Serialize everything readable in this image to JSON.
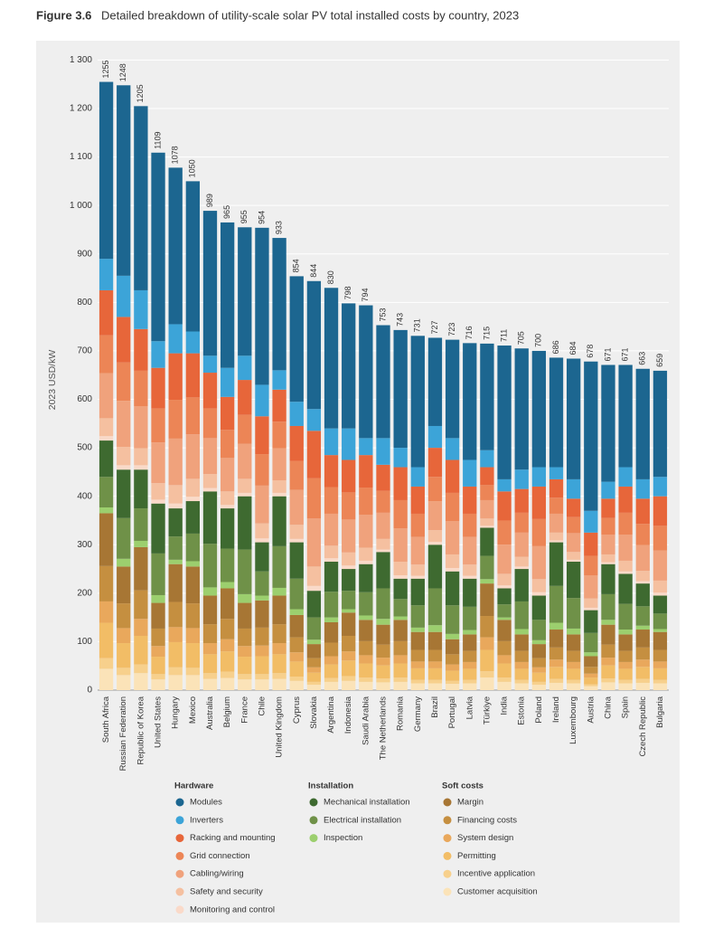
{
  "chart_data": {
    "type": "stacked_bar",
    "figure_label": "Figure 3.6",
    "title": "Detailed breakdown of utility-scale solar PV total installed costs by country, 2023",
    "y_label": "2023 USD/kW",
    "categories": [
      "South Africa",
      "Russian Federation",
      "Republic of Korea",
      "United States",
      "Hungary",
      "Mexico",
      "Australia",
      "Belgium",
      "France",
      "Chile",
      "United Kingdom",
      "Cyprus",
      "Slovakia",
      "Argentina",
      "Indonesia",
      "Saudi Arabia",
      "The Netherlands",
      "Romania",
      "Germany",
      "Brazil",
      "Portugal",
      "Latvia",
      "Türkiye",
      "India",
      "Estonia",
      "Poland",
      "Ireland",
      "Luxembourg",
      "Austria",
      "China",
      "Spain",
      "Czech Republic",
      "Bulgaria"
    ],
    "totals": [
      1255,
      1248,
      1205,
      1109,
      1078,
      1050,
      989,
      965,
      955,
      954,
      933,
      854,
      844,
      830,
      798,
      794,
      753,
      743,
      731,
      727,
      723,
      716,
      715,
      711,
      705,
      700,
      686,
      684,
      678,
      671,
      671,
      663,
      659
    ],
    "ylim": [
      0,
      1340
    ],
    "yticks": [
      0,
      100,
      200,
      300,
      400,
      500,
      600,
      700,
      800,
      900,
      {
        "value": 1000,
        "label": "1 000"
      },
      {
        "value": 1100,
        "label": "1 100"
      },
      {
        "value": 1200,
        "label": "1 200"
      },
      {
        "value": 1300,
        "label": "1 300"
      }
    ],
    "grid": true,
    "series": [
      {
        "name": "Modules",
        "group": "Hardware",
        "color": "#1c6690",
        "values": [
          365,
          393,
          380,
          389,
          323,
          310,
          299,
          300,
          265,
          324,
          273,
          259,
          264,
          290,
          258,
          274,
          233,
          243,
          271,
          182,
          203,
          241,
          220,
          276,
          250,
          240,
          226,
          249,
          308,
          241,
          211,
          228,
          219
        ]
      },
      {
        "name": "Inverters",
        "group": "Hardware",
        "color": "#3ca4d8",
        "values": [
          65,
          85,
          80,
          55,
          60,
          45,
          35,
          60,
          50,
          65,
          40,
          50,
          45,
          55,
          65,
          35,
          55,
          40,
          40,
          45,
          45,
          55,
          35,
          25,
          40,
          40,
          25,
          40,
          45,
          35,
          40,
          40,
          40
        ]
      },
      {
        "name": "Racking and mounting",
        "group": "Hardware",
        "color": "#e7663a",
        "values": [
          93,
          94,
          86,
          84,
          96,
          91,
          74,
          68,
          72,
          78,
          66,
          72,
          98,
          66,
          67,
          67,
          54,
          68,
          56,
          60,
          68,
          56,
          37,
          60,
          49,
          67,
          38,
          38,
          48,
          40,
          54,
          52,
          61
        ]
      },
      {
        "name": "Grid connection",
        "group": "Hardware",
        "color": "#ec8556",
        "values": [
          78,
          79,
          73,
          70,
          80,
          76,
          61,
          58,
          60,
          65,
          55,
          60,
          83,
          55,
          56,
          56,
          45,
          58,
          48,
          50,
          58,
          48,
          31,
          50,
          41,
          56,
          33,
          33,
          40,
          34,
          45,
          44,
          51
        ]
      },
      {
        "name": "Cabling/wiring",
        "group": "Hardware",
        "color": "#f0a27c",
        "values": [
          93,
          95,
          87,
          84,
          96,
          92,
          74,
          69,
          72,
          78,
          66,
          72,
          99,
          66,
          68,
          68,
          54,
          69,
          57,
          60,
          69,
          57,
          38,
          60,
          50,
          68,
          39,
          39,
          48,
          41,
          54,
          53,
          62
        ]
      },
      {
        "name": "Safety and security",
        "group": "Hardware",
        "color": "#f5c0a0",
        "values": [
          37,
          38,
          35,
          34,
          38,
          37,
          29,
          28,
          29,
          31,
          26,
          29,
          40,
          26,
          27,
          27,
          22,
          28,
          23,
          24,
          28,
          23,
          15,
          24,
          20,
          27,
          16,
          16,
          19,
          16,
          22,
          21,
          25
        ]
      },
      {
        "name": "Monitoring and control",
        "group": "Hardware",
        "color": "#fadac9",
        "values": [
          9,
          9,
          9,
          8,
          10,
          9,
          7,
          7,
          7,
          8,
          7,
          7,
          10,
          7,
          7,
          7,
          5,
          7,
          6,
          6,
          7,
          6,
          4,
          6,
          5,
          7,
          4,
          4,
          5,
          4,
          5,
          5,
          6
        ]
      },
      {
        "name": "Mechanical installation",
        "group": "Installation",
        "color": "#3e6a30",
        "values": [
          75,
          100,
          80,
          103,
          58,
          67,
          108,
          83,
          110,
          60,
          103,
          75,
          55,
          62,
          45,
          58,
          75,
          42,
          55,
          90,
          70,
          58,
          58,
          33,
          67,
          50,
          90,
          75,
          47,
          62,
          62,
          47,
          37
        ]
      },
      {
        "name": "Electrical installation",
        "group": "Installation",
        "color": "#6f9148",
        "values": [
          63,
          84,
          67,
          86,
          48,
          57,
          90,
          69,
          92,
          50,
          86,
          63,
          46,
          53,
          38,
          48,
          63,
          36,
          46,
          76,
          59,
          48,
          48,
          27,
          57,
          42,
          76,
          63,
          40,
          53,
          53,
          40,
          32
        ]
      },
      {
        "name": "Inspection",
        "group": "Installation",
        "color": "#9ccf6e",
        "values": [
          12,
          16,
          13,
          16,
          9,
          11,
          17,
          13,
          18,
          10,
          16,
          12,
          9,
          10,
          7,
          9,
          12,
          7,
          9,
          14,
          11,
          9,
          9,
          5,
          11,
          8,
          14,
          12,
          8,
          10,
          10,
          8,
          6
        ]
      },
      {
        "name": "Margin",
        "group": "Soft costs",
        "color": "#a77634",
        "values": [
          109,
          76,
          89,
          53,
          78,
          76,
          59,
          63,
          53,
          56,
          59,
          46,
          29,
          42,
          48,
          44,
          41,
          44,
          37,
          37,
          31,
          34,
          67,
          44,
          34,
          29,
          37,
          34,
          22,
          41,
          34,
          37,
          37
        ]
      },
      {
        "name": "Financing costs",
        "group": "Soft costs",
        "color": "#c58f40",
        "values": [
          73,
          51,
          59,
          36,
          52,
          51,
          39,
          42,
          36,
          37,
          39,
          31,
          19,
          28,
          32,
          29,
          27,
          29,
          24,
          24,
          21,
          23,
          44,
          29,
          23,
          19,
          25,
          23,
          14,
          27,
          23,
          25,
          24
        ]
      },
      {
        "name": "System design",
        "group": "Soft costs",
        "color": "#e9a85c",
        "values": [
          44,
          31,
          35,
          22,
          31,
          31,
          23,
          25,
          22,
          22,
          23,
          19,
          11,
          17,
          19,
          17,
          16,
          17,
          14,
          14,
          13,
          14,
          26,
          17,
          14,
          11,
          15,
          14,
          8,
          16,
          14,
          15,
          14
        ]
      },
      {
        "name": "Permitting",
        "group": "Soft costs",
        "color": "#f2bd66",
        "values": [
          73,
          51,
          59,
          36,
          52,
          51,
          39,
          42,
          36,
          37,
          39,
          31,
          19,
          28,
          32,
          29,
          27,
          29,
          24,
          24,
          21,
          23,
          44,
          29,
          23,
          19,
          25,
          23,
          14,
          27,
          23,
          25,
          24
        ]
      },
      {
        "name": "Incentive application",
        "group": "Soft costs",
        "color": "#f7d08c",
        "values": [
          22,
          15,
          18,
          11,
          16,
          15,
          12,
          13,
          11,
          11,
          12,
          9,
          6,
          8,
          10,
          9,
          8,
          9,
          7,
          7,
          6,
          7,
          13,
          9,
          7,
          6,
          8,
          7,
          4,
          8,
          7,
          8,
          7
        ]
      },
      {
        "name": "Customer acquisition",
        "group": "Soft costs",
        "color": "#fbe3b8",
        "values": [
          44,
          31,
          35,
          22,
          31,
          31,
          23,
          25,
          22,
          22,
          23,
          19,
          11,
          17,
          19,
          17,
          16,
          17,
          14,
          14,
          13,
          14,
          26,
          17,
          14,
          11,
          15,
          14,
          8,
          16,
          14,
          15,
          14
        ]
      }
    ]
  }
}
